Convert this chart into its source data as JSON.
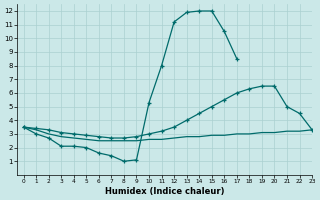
{
  "xlabel": "Humidex (Indice chaleur)",
  "background_color": "#cbe8e8",
  "grid_color": "#aad0d0",
  "line_color": "#006b6b",
  "xlim": [
    -0.5,
    23
  ],
  "ylim": [
    0,
    12.5
  ],
  "xticks": [
    0,
    1,
    2,
    3,
    4,
    5,
    6,
    7,
    8,
    9,
    10,
    11,
    12,
    13,
    14,
    15,
    16,
    17,
    18,
    19,
    20,
    21,
    22,
    23
  ],
  "yticks": [
    1,
    2,
    3,
    4,
    5,
    6,
    7,
    8,
    9,
    10,
    11,
    12
  ],
  "line1_x": [
    0,
    1,
    2,
    3,
    4,
    5,
    6,
    7,
    8,
    9,
    10,
    11,
    12,
    13,
    14,
    15,
    16,
    17
  ],
  "line1_y": [
    3.5,
    3.0,
    2.7,
    2.1,
    2.1,
    2.0,
    1.6,
    1.4,
    1.0,
    1.1,
    5.3,
    8.0,
    11.2,
    11.9,
    12.0,
    12.0,
    10.5,
    8.5
  ],
  "line2_x": [
    0,
    1,
    2,
    3,
    4,
    5,
    6,
    7,
    8,
    9,
    10,
    11,
    12,
    13,
    14,
    15,
    16,
    17,
    18,
    19,
    20,
    21,
    22,
    23
  ],
  "line2_y": [
    3.5,
    3.4,
    3.3,
    3.1,
    3.0,
    2.9,
    2.8,
    2.7,
    2.7,
    2.8,
    3.0,
    3.2,
    3.5,
    4.0,
    4.5,
    5.0,
    5.5,
    6.0,
    6.3,
    6.5,
    6.5,
    5.0,
    4.5,
    3.3
  ],
  "line3_x": [
    0,
    1,
    2,
    3,
    4,
    5,
    6,
    7,
    8,
    9,
    10,
    11,
    12,
    13,
    14,
    15,
    16,
    17,
    18,
    19,
    20,
    21,
    22,
    23
  ],
  "line3_y": [
    3.5,
    3.3,
    3.0,
    2.8,
    2.7,
    2.6,
    2.5,
    2.5,
    2.5,
    2.5,
    2.6,
    2.6,
    2.7,
    2.8,
    2.8,
    2.9,
    2.9,
    3.0,
    3.0,
    3.1,
    3.1,
    3.2,
    3.2,
    3.3
  ]
}
